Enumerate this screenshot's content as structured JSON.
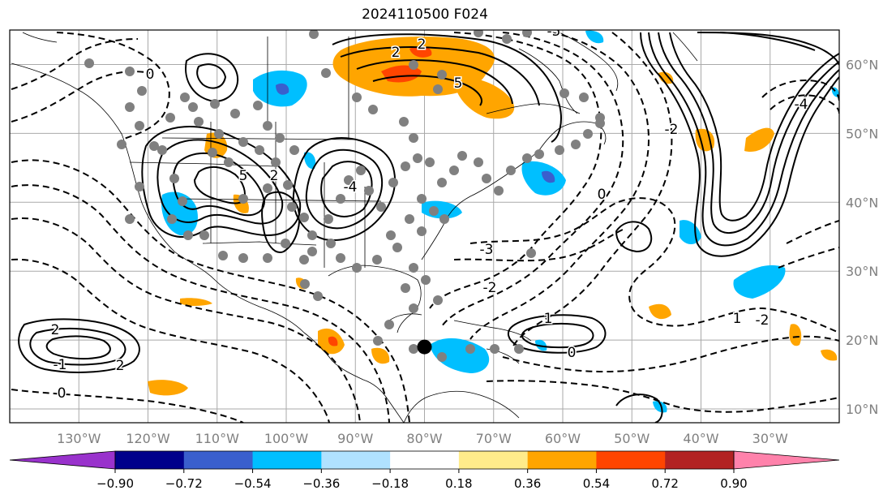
{
  "title": "2024110500 F024",
  "map": {
    "lon_min": -140,
    "lon_max": -20,
    "lat_min": 8,
    "lat_max": 65,
    "lon_labels": [
      {
        "value": -130,
        "text": "130°W"
      },
      {
        "value": -120,
        "text": "120°W"
      },
      {
        "value": -110,
        "text": "110°W"
      },
      {
        "value": -100,
        "text": "100°W"
      },
      {
        "value": -90,
        "text": "90°W"
      },
      {
        "value": -80,
        "text": "80°W"
      },
      {
        "value": -70,
        "text": "70°W"
      },
      {
        "value": -60,
        "text": "60°W"
      },
      {
        "value": -50,
        "text": "50°W"
      },
      {
        "value": -40,
        "text": "40°W"
      },
      {
        "value": -30,
        "text": "30°W"
      }
    ],
    "lat_labels": [
      {
        "value": 60,
        "text": "60°N"
      },
      {
        "value": 50,
        "text": "50°N"
      },
      {
        "value": 40,
        "text": "40°N"
      },
      {
        "value": 30,
        "text": "30°N"
      },
      {
        "value": 20,
        "text": "20°N"
      },
      {
        "value": 10,
        "text": "10°N"
      }
    ],
    "highlight_point": {
      "lon": -80,
      "lat": 19
    },
    "contour_labels": [
      "5",
      "2",
      "-4",
      "5",
      "2",
      "0",
      "-5",
      "2",
      "1",
      "2",
      "-1",
      "2",
      "0",
      "-2",
      "-4",
      "0",
      "1",
      "-2",
      "-3",
      "-2",
      "0"
    ]
  },
  "colorbar": {
    "colors": [
      "#9932cc",
      "#00008b",
      "#3a5fcd",
      "#00bfff",
      "#b0e2ff",
      "#ffffff",
      "#ffec8b",
      "#ffa500",
      "#ff4500",
      "#b22222",
      "#ff82ab"
    ],
    "ticks": [
      "−0.90",
      "−0.72",
      "−0.54",
      "−0.36",
      "−0.18",
      "0.18",
      "0.36",
      "0.54",
      "0.72",
      "0.90"
    ]
  }
}
